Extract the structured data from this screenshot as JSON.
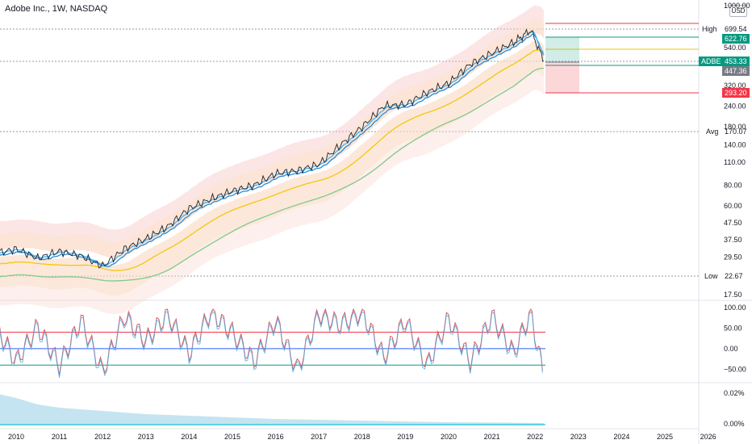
{
  "header": {
    "title": "Adobe Inc., 1W, NASDAQ",
    "currency": "USD"
  },
  "price_axis": {
    "ticks": [
      "1000.00",
      "699.54",
      "622.76",
      "540.00",
      "453.33",
      "447.36",
      "320.00",
      "293.20",
      "240.00",
      "180.00",
      "170.07",
      "140.00",
      "110.00",
      "80.00",
      "60.00",
      "47.50",
      "37.50",
      "29.50",
      "22.67",
      "17.50"
    ]
  },
  "labels": {
    "high": "High",
    "high_value": "699.54",
    "target": "622.76",
    "mid": "540.00",
    "symbol": "ADBE",
    "last": "453.33",
    "prev": "447.36",
    "stop": "293.20",
    "avg": "Avg",
    "avg_value": "170.07",
    "low": "Low",
    "low_value": "22.67"
  },
  "colors": {
    "accent_green": "#089981",
    "accent_red": "#f23645",
    "ma_yellow": "#f5c60b",
    "ma_green": "#7fc98a",
    "ma_blue": "#2962ff"
  },
  "chart_data": [
    {
      "type": "line",
      "title": "Adobe Inc., 1W, NASDAQ",
      "x_ticks": [
        "2010",
        "2011",
        "2012",
        "2013",
        "2014",
        "2015",
        "2016",
        "2017",
        "2018",
        "2019",
        "2020",
        "2021",
        "2022",
        "2023",
        "2024",
        "2025",
        "2026"
      ],
      "yscale": "log",
      "ylim": [
        16,
        1000
      ],
      "x": [
        2009.5,
        2010.0,
        2010.5,
        2011.0,
        2011.5,
        2012.0,
        2012.5,
        2013.0,
        2013.5,
        2014.0,
        2014.5,
        2015.0,
        2015.5,
        2016.0,
        2016.5,
        2017.0,
        2017.5,
        2018.0,
        2018.5,
        2019.0,
        2019.5,
        2020.0,
        2020.5,
        2021.0,
        2021.5,
        2021.9,
        2022.2
      ],
      "series": [
        {
          "name": "ADBE",
          "values": [
            31,
            33,
            29,
            32,
            30,
            26,
            33,
            38,
            45,
            58,
            66,
            74,
            80,
            94,
            98,
            107,
            140,
            180,
            240,
            245,
            290,
            330,
            430,
            500,
            580,
            690,
            450
          ]
        }
      ],
      "price_lines": {
        "high": 699.54,
        "target": 622.76,
        "mid": 540.0,
        "last": 453.33,
        "prev": 447.36,
        "stop": 293.2,
        "avg": 170.07,
        "low": 22.67
      },
      "grid": false
    },
    {
      "type": "line",
      "ylim": [
        -75,
        110
      ],
      "y_ticks": [
        "100.00",
        "50.00",
        "0.00",
        "−50.00"
      ],
      "levels": [
        40,
        0,
        -40
      ],
      "x": [
        2009.5,
        2010.0,
        2010.5,
        2011.0,
        2011.5,
        2012.0,
        2012.5,
        2013.0,
        2013.5,
        2014.0,
        2014.5,
        2015.0,
        2015.5,
        2016.0,
        2016.5,
        2017.0,
        2017.5,
        2018.0,
        2018.5,
        2019.0,
        2019.5,
        2020.0,
        2020.5,
        2021.0,
        2021.5,
        2021.9,
        2022.2
      ],
      "series": [
        {
          "name": "",
          "values": [
            60,
            -30,
            55,
            -40,
            70,
            -55,
            80,
            20,
            85,
            -10,
            90,
            40,
            -30,
            70,
            -50,
            85,
            60,
            90,
            -20,
            70,
            -40,
            75,
            -30,
            80,
            -10,
            90,
            -70
          ]
        }
      ]
    },
    {
      "type": "area",
      "ylim": [
        0,
        0.025
      ],
      "y_ticks": [
        "0.02%",
        "0.00%"
      ],
      "x": [
        2009.5,
        2010.0,
        2010.5,
        2011.0,
        2012.0,
        2013.0,
        2014.0,
        2015.0,
        2016.0,
        2017.0,
        2018.0,
        2019.0,
        2020.0,
        2021.0,
        2022.2
      ],
      "series": [
        {
          "name": "",
          "values": [
            0.02,
            0.017,
            0.013,
            0.011,
            0.009,
            0.007,
            0.006,
            0.005,
            0.004,
            0.0035,
            0.003,
            0.0025,
            0.002,
            0.0018,
            0.0015
          ]
        }
      ]
    }
  ]
}
